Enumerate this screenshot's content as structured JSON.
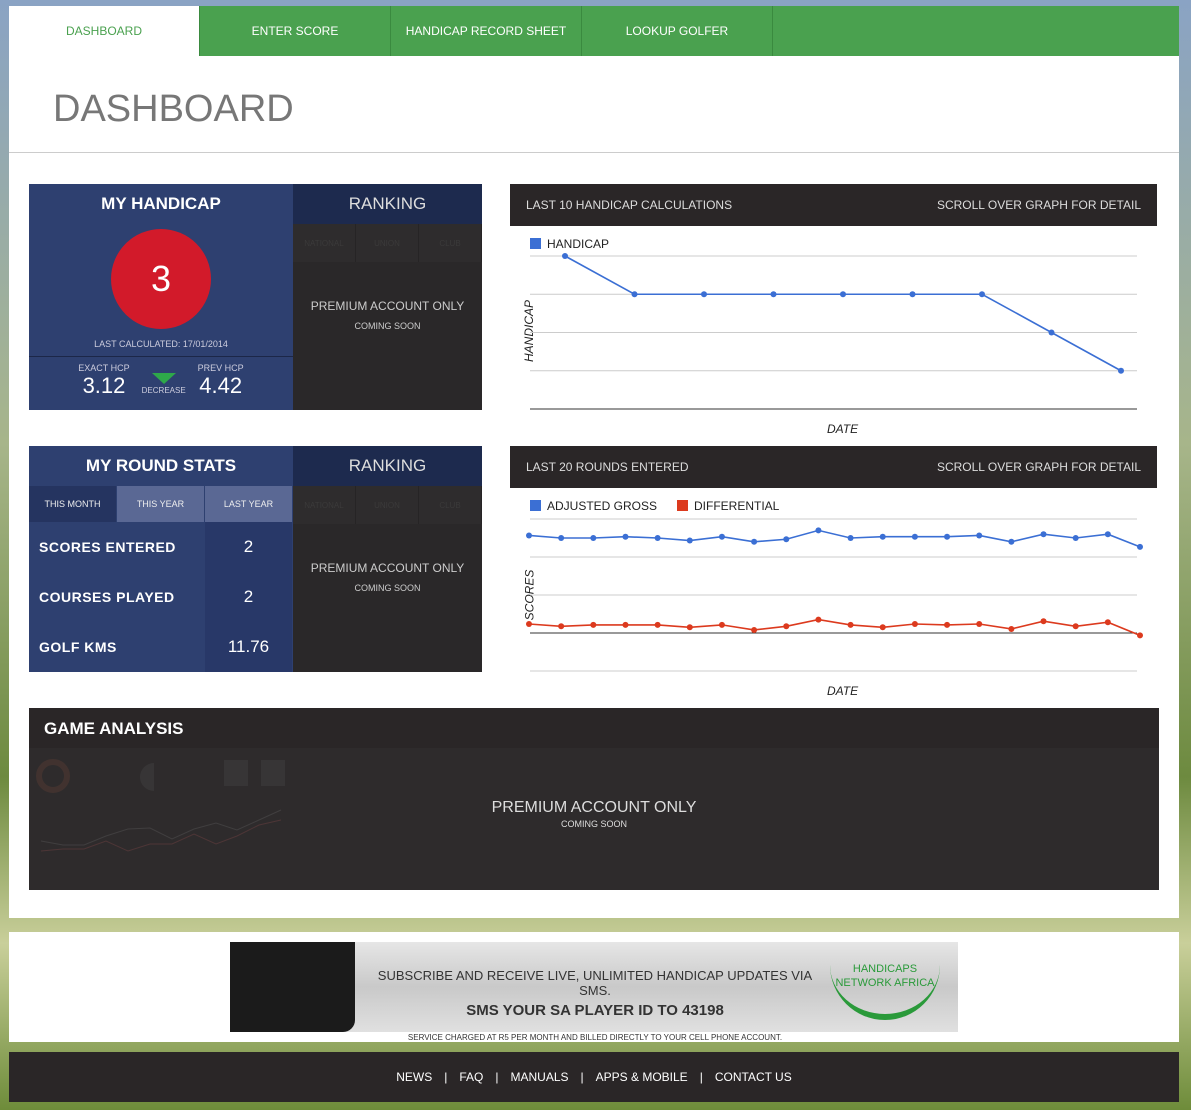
{
  "nav": {
    "tabs": [
      "DASHBOARD",
      "ENTER SCORE",
      "HANDICAP RECORD SHEET",
      "LOOKUP GOLFER"
    ],
    "active": 0
  },
  "page_title": "DASHBOARD",
  "handicap": {
    "title": "MY HANDICAP",
    "value": "3",
    "last_calculated": "LAST CALCULATED: 17/01/2014",
    "exact_label": "EXACT HCP",
    "exact_value": "3.12",
    "trend": "DECREASE",
    "prev_label": "PREV HCP",
    "prev_value": "4.42",
    "circle_color": "#d21a2a",
    "trend_color": "#2ea84a"
  },
  "ranking": {
    "title": "RANKING",
    "tabs": [
      "NATIONAL",
      "UNION",
      "CLUB"
    ],
    "premium": "PREMIUM ACCOUNT ONLY",
    "coming_soon": "COMING SOON"
  },
  "round_stats": {
    "title": "MY ROUND STATS",
    "periods": [
      "THIS MONTH",
      "THIS YEAR",
      "LAST YEAR"
    ],
    "active_period": 0,
    "rows": [
      {
        "label": "SCORES ENTERED",
        "value": "2"
      },
      {
        "label": "COURSES PLAYED",
        "value": "2"
      },
      {
        "label": "GOLF KMS",
        "value": "11.76"
      }
    ]
  },
  "game_analysis": {
    "title": "GAME ANALYSIS",
    "premium": "PREMIUM ACCOUNT ONLY",
    "coming_soon": "COMING SOON"
  },
  "chart_data": [
    {
      "type": "line",
      "title": "LAST 10 HANDICAP CALCULATIONS",
      "hint": "SCROLL OVER GRAPH FOR DETAIL",
      "xlabel": "DATE",
      "ylabel": "HANDICAP",
      "ylim": [
        0,
        12
      ],
      "grid": true,
      "legend": "top-left",
      "series": [
        {
          "name": "HANDICAP",
          "color": "#3b6fd4",
          "values": [
            12,
            9,
            9,
            9,
            9,
            9,
            9,
            6,
            3
          ]
        }
      ]
    },
    {
      "type": "line",
      "title": "LAST 20 ROUNDS ENTERED",
      "hint": "SCROLL OVER GRAPH FOR DETAIL",
      "xlabel": "DATE",
      "ylabel": "SCORES",
      "ylim": [
        -30,
        90
      ],
      "grid": true,
      "legend": "top-left",
      "series": [
        {
          "name": "ADJUSTED GROSS",
          "color": "#3b6fd4",
          "values": [
            77,
            75,
            75,
            76,
            75,
            73,
            76,
            72,
            74,
            81,
            75,
            76,
            76,
            76,
            77,
            72,
            78,
            75,
            78,
            68
          ]
        },
        {
          "name": "DIFFERENTIAL",
          "color": "#dc3a1e",
          "values": [
            7.1,
            5.3,
            6.4,
            6.4,
            6.4,
            4.5,
            6.4,
            2.4,
            5.3,
            10.6,
            6.4,
            4.5,
            7.1,
            6.4,
            7.1,
            3.2,
            9.3,
            5.3,
            8.5,
            -1.9
          ]
        }
      ]
    }
  ],
  "banner": {
    "line1": "SUBSCRIBE AND RECEIVE LIVE, UNLIMITED HANDICAP UPDATES VIA SMS.",
    "line2": "SMS YOUR SA PLAYER ID TO 43198",
    "line3": "SERVICE CHARGED AT R5 PER MONTH AND BILLED DIRECTLY TO YOUR CELL PHONE ACCOUNT.",
    "logo": "HANDICAPS NETWORK AFRICA"
  },
  "footer": {
    "links": [
      "NEWS",
      "FAQ",
      "MANUALS",
      "APPS & MOBILE",
      "CONTACT US"
    ]
  }
}
